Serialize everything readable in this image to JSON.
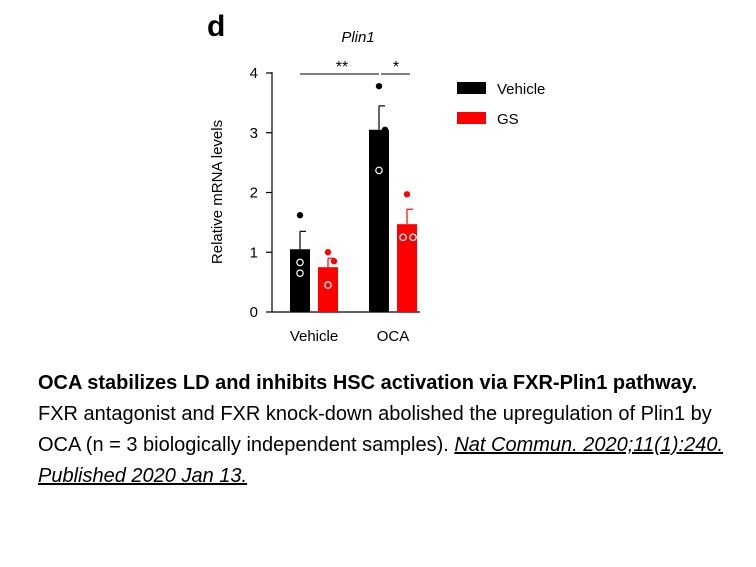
{
  "panel_label": "d",
  "chart_data": {
    "type": "bar",
    "title": "Plin1",
    "ylabel": "Relative mRNA levels",
    "xlabel": "",
    "ylim": [
      0,
      4
    ],
    "yticks": [
      "0",
      "1",
      "2",
      "3",
      "4"
    ],
    "categories": [
      "Vehicle",
      "OCA"
    ],
    "grid": false,
    "legend_position": "top-right",
    "series": [
      {
        "name": "Vehicle",
        "color": "#000000",
        "values": [
          1.05,
          3.05
        ],
        "errors": [
          0.3,
          0.4
        ],
        "points": [
          [
            1.62,
            0.83,
            0.65
          ],
          [
            3.78,
            3.05,
            2.37
          ]
        ]
      },
      {
        "name": "GS",
        "color": "#ff0000",
        "values": [
          0.75,
          1.47
        ],
        "errors": [
          0.15,
          0.25
        ],
        "points": [
          [
            1.0,
            0.85,
            0.45
          ],
          [
            1.97,
            1.25,
            1.25
          ]
        ]
      }
    ],
    "annotations": [
      "**",
      "*"
    ]
  },
  "caption": {
    "title": "OCA stabilizes LD and inhibits HSC activation via FXR-Plin1 pathway.",
    "body": "FXR antagonist and FXR knock-down abolished the upregulation of Plin1 by OCA (n = 3 biologically independent samples).",
    "citation": "Nat Commun. 2020;11(1):240. Published 2020 Jan 13."
  }
}
